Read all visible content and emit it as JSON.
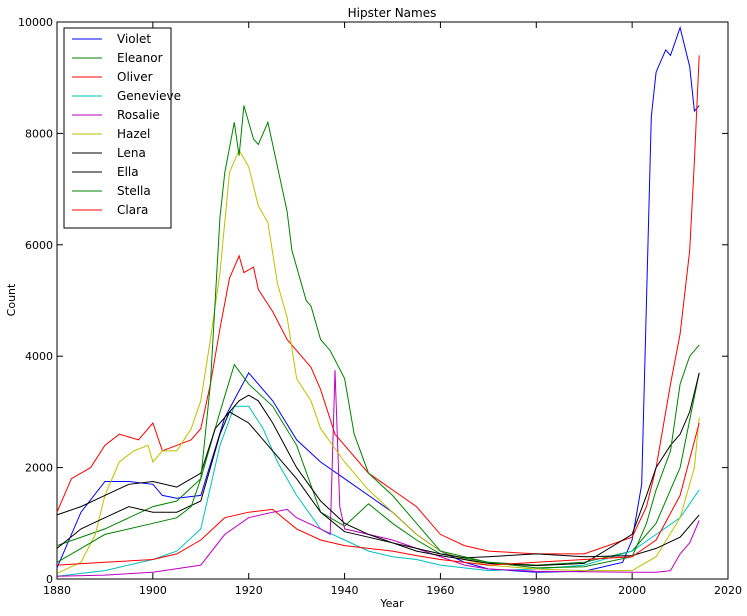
{
  "chart_data": {
    "type": "line",
    "title": "Hipster Names",
    "xlabel": "Year",
    "ylabel": "Count",
    "xlim": [
      1880,
      2020
    ],
    "ylim": [
      0,
      10000
    ],
    "xticks": [
      1880,
      1900,
      1920,
      1940,
      1960,
      1980,
      2000,
      2020
    ],
    "yticks": [
      0,
      2000,
      4000,
      6000,
      8000,
      10000
    ],
    "grid": false,
    "legend_position": "top-left",
    "series": [
      {
        "name": "Violet",
        "color": "#0000ff",
        "points": [
          [
            1880,
            200
          ],
          [
            1885,
            1200
          ],
          [
            1890,
            1750
          ],
          [
            1895,
            1750
          ],
          [
            1900,
            1700
          ],
          [
            1902,
            1500
          ],
          [
            1905,
            1450
          ],
          [
            1910,
            1500
          ],
          [
            1915,
            2900
          ],
          [
            1920,
            3700
          ],
          [
            1925,
            3200
          ],
          [
            1930,
            2500
          ],
          [
            1935,
            2100
          ],
          [
            1940,
            1800
          ],
          [
            1945,
            1500
          ],
          [
            1950,
            1200
          ],
          [
            1955,
            800
          ],
          [
            1960,
            500
          ],
          [
            1965,
            300
          ],
          [
            1970,
            180
          ],
          [
            1980,
            120
          ],
          [
            1990,
            140
          ],
          [
            1998,
            300
          ],
          [
            2000,
            700
          ],
          [
            2002,
            1700
          ],
          [
            2004,
            8300
          ],
          [
            2005,
            9100
          ],
          [
            2007,
            9500
          ],
          [
            2008,
            9400
          ],
          [
            2010,
            9900
          ],
          [
            2012,
            9200
          ],
          [
            2013,
            8400
          ],
          [
            2014,
            8500
          ]
        ]
      },
      {
        "name": "Eleanor",
        "color": "#008000",
        "points": [
          [
            1880,
            600
          ],
          [
            1890,
            900
          ],
          [
            1900,
            1300
          ],
          [
            1905,
            1400
          ],
          [
            1910,
            1800
          ],
          [
            1914,
            3000
          ],
          [
            1917,
            3850
          ],
          [
            1920,
            3500
          ],
          [
            1925,
            3100
          ],
          [
            1930,
            2400
          ],
          [
            1935,
            1200
          ],
          [
            1940,
            950
          ],
          [
            1945,
            1350
          ],
          [
            1950,
            1000
          ],
          [
            1955,
            700
          ],
          [
            1960,
            450
          ],
          [
            1970,
            300
          ],
          [
            1980,
            250
          ],
          [
            1990,
            300
          ],
          [
            2000,
            500
          ],
          [
            2005,
            1000
          ],
          [
            2010,
            2000
          ],
          [
            2014,
            3700
          ]
        ]
      },
      {
        "name": "Oliver",
        "color": "#ff0000",
        "points": [
          [
            1880,
            1200
          ],
          [
            1883,
            1800
          ],
          [
            1887,
            2000
          ],
          [
            1890,
            2400
          ],
          [
            1893,
            2600
          ],
          [
            1897,
            2500
          ],
          [
            1900,
            2800
          ],
          [
            1902,
            2300
          ],
          [
            1905,
            2400
          ],
          [
            1908,
            2500
          ],
          [
            1910,
            2700
          ],
          [
            1912,
            3500
          ],
          [
            1914,
            4500
          ],
          [
            1916,
            5400
          ],
          [
            1918,
            5800
          ],
          [
            1919,
            5500
          ],
          [
            1921,
            5600
          ],
          [
            1922,
            5200
          ],
          [
            1925,
            4800
          ],
          [
            1928,
            4300
          ],
          [
            1930,
            4100
          ],
          [
            1933,
            3800
          ],
          [
            1935,
            3400
          ],
          [
            1938,
            2600
          ],
          [
            1940,
            2400
          ],
          [
            1945,
            1900
          ],
          [
            1950,
            1600
          ],
          [
            1955,
            1300
          ],
          [
            1960,
            800
          ],
          [
            1965,
            600
          ],
          [
            1970,
            500
          ],
          [
            1980,
            450
          ],
          [
            1990,
            450
          ],
          [
            2000,
            750
          ],
          [
            2003,
            1300
          ],
          [
            2005,
            2000
          ],
          [
            2008,
            3500
          ],
          [
            2010,
            4400
          ],
          [
            2012,
            5900
          ],
          [
            2013,
            7500
          ],
          [
            2014,
            9400
          ]
        ]
      },
      {
        "name": "Genevieve",
        "color": "#00bfbf",
        "points": [
          [
            1880,
            50
          ],
          [
            1890,
            150
          ],
          [
            1900,
            350
          ],
          [
            1905,
            500
          ],
          [
            1910,
            900
          ],
          [
            1914,
            2400
          ],
          [
            1917,
            3100
          ],
          [
            1920,
            3100
          ],
          [
            1923,
            2700
          ],
          [
            1926,
            2100
          ],
          [
            1930,
            1500
          ],
          [
            1935,
            900
          ],
          [
            1940,
            700
          ],
          [
            1945,
            500
          ],
          [
            1950,
            400
          ],
          [
            1955,
            350
          ],
          [
            1960,
            250
          ],
          [
            1970,
            150
          ],
          [
            1980,
            180
          ],
          [
            1990,
            250
          ],
          [
            2000,
            500
          ],
          [
            2005,
            800
          ],
          [
            2010,
            1100
          ],
          [
            2014,
            1600
          ]
        ]
      },
      {
        "name": "Rosalie",
        "color": "#bf00bf",
        "points": [
          [
            1880,
            50
          ],
          [
            1890,
            70
          ],
          [
            1900,
            120
          ],
          [
            1910,
            250
          ],
          [
            1915,
            800
          ],
          [
            1920,
            1100
          ],
          [
            1925,
            1200
          ],
          [
            1928,
            1250
          ],
          [
            1930,
            1100
          ],
          [
            1935,
            900
          ],
          [
            1937,
            800
          ],
          [
            1938,
            3750
          ],
          [
            1939,
            1300
          ],
          [
            1940,
            900
          ],
          [
            1945,
            800
          ],
          [
            1950,
            700
          ],
          [
            1955,
            550
          ],
          [
            1960,
            400
          ],
          [
            1965,
            250
          ],
          [
            1970,
            180
          ],
          [
            1980,
            140
          ],
          [
            1990,
            130
          ],
          [
            2000,
            120
          ],
          [
            2005,
            120
          ],
          [
            2008,
            150
          ],
          [
            2010,
            450
          ],
          [
            2012,
            650
          ],
          [
            2014,
            1050
          ]
        ]
      },
      {
        "name": "Hazel",
        "color": "#bfbf00",
        "points": [
          [
            1880,
            100
          ],
          [
            1885,
            300
          ],
          [
            1888,
            800
          ],
          [
            1890,
            1500
          ],
          [
            1893,
            2100
          ],
          [
            1896,
            2300
          ],
          [
            1899,
            2400
          ],
          [
            1900,
            2100
          ],
          [
            1902,
            2300
          ],
          [
            1905,
            2300
          ],
          [
            1908,
            2700
          ],
          [
            1910,
            3200
          ],
          [
            1912,
            4300
          ],
          [
            1914,
            5500
          ],
          [
            1916,
            7300
          ],
          [
            1918,
            7700
          ],
          [
            1920,
            7400
          ],
          [
            1922,
            6700
          ],
          [
            1924,
            6400
          ],
          [
            1926,
            5300
          ],
          [
            1928,
            4700
          ],
          [
            1930,
            3600
          ],
          [
            1933,
            3200
          ],
          [
            1935,
            2700
          ],
          [
            1940,
            2100
          ],
          [
            1945,
            1600
          ],
          [
            1950,
            1200
          ],
          [
            1955,
            800
          ],
          [
            1960,
            500
          ],
          [
            1965,
            350
          ],
          [
            1970,
            250
          ],
          [
            1980,
            180
          ],
          [
            1990,
            150
          ],
          [
            2000,
            150
          ],
          [
            2005,
            400
          ],
          [
            2010,
            1100
          ],
          [
            2013,
            2000
          ],
          [
            2014,
            2900
          ]
        ]
      },
      {
        "name": "Lena",
        "color": "#000000",
        "points": [
          [
            1880,
            550
          ],
          [
            1885,
            900
          ],
          [
            1890,
            1100
          ],
          [
            1895,
            1300
          ],
          [
            1900,
            1200
          ],
          [
            1905,
            1200
          ],
          [
            1910,
            1400
          ],
          [
            1914,
            2600
          ],
          [
            1916,
            3000
          ],
          [
            1920,
            2800
          ],
          [
            1925,
            2300
          ],
          [
            1930,
            1800
          ],
          [
            1935,
            1200
          ],
          [
            1940,
            850
          ],
          [
            1945,
            750
          ],
          [
            1950,
            650
          ],
          [
            1955,
            550
          ],
          [
            1960,
            450
          ],
          [
            1965,
            380
          ],
          [
            1970,
            400
          ],
          [
            1980,
            450
          ],
          [
            1990,
            400
          ],
          [
            2000,
            420
          ],
          [
            2005,
            550
          ],
          [
            2010,
            750
          ],
          [
            2014,
            1150
          ]
        ]
      },
      {
        "name": "Ella",
        "color": "#000000",
        "points": [
          [
            1880,
            1150
          ],
          [
            1885,
            1300
          ],
          [
            1890,
            1500
          ],
          [
            1895,
            1700
          ],
          [
            1900,
            1750
          ],
          [
            1905,
            1650
          ],
          [
            1910,
            1900
          ],
          [
            1913,
            2700
          ],
          [
            1915,
            2900
          ],
          [
            1918,
            3200
          ],
          [
            1920,
            3300
          ],
          [
            1922,
            3200
          ],
          [
            1925,
            2800
          ],
          [
            1930,
            2000
          ],
          [
            1935,
            1400
          ],
          [
            1940,
            1000
          ],
          [
            1945,
            800
          ],
          [
            1950,
            650
          ],
          [
            1955,
            500
          ],
          [
            1960,
            420
          ],
          [
            1970,
            280
          ],
          [
            1980,
            240
          ],
          [
            1990,
            280
          ],
          [
            2000,
            800
          ],
          [
            2003,
            1500
          ],
          [
            2005,
            2000
          ],
          [
            2008,
            2400
          ],
          [
            2010,
            2600
          ],
          [
            2012,
            3000
          ],
          [
            2014,
            3700
          ]
        ]
      },
      {
        "name": "Stella",
        "color": "#008000",
        "points": [
          [
            1880,
            300
          ],
          [
            1885,
            550
          ],
          [
            1890,
            800
          ],
          [
            1895,
            900
          ],
          [
            1900,
            1000
          ],
          [
            1905,
            1100
          ],
          [
            1908,
            1300
          ],
          [
            1910,
            1800
          ],
          [
            1912,
            3500
          ],
          [
            1914,
            6500
          ],
          [
            1915,
            7300
          ],
          [
            1917,
            8200
          ],
          [
            1918,
            7600
          ],
          [
            1919,
            8500
          ],
          [
            1921,
            7900
          ],
          [
            1922,
            7800
          ],
          [
            1924,
            8200
          ],
          [
            1926,
            7400
          ],
          [
            1928,
            6600
          ],
          [
            1929,
            5900
          ],
          [
            1932,
            5000
          ],
          [
            1933,
            4900
          ],
          [
            1935,
            4300
          ],
          [
            1937,
            4100
          ],
          [
            1940,
            3600
          ],
          [
            1942,
            2600
          ],
          [
            1945,
            1900
          ],
          [
            1950,
            1500
          ],
          [
            1955,
            1000
          ],
          [
            1960,
            500
          ],
          [
            1965,
            400
          ],
          [
            1970,
            300
          ],
          [
            1980,
            200
          ],
          [
            1990,
            220
          ],
          [
            2000,
            400
          ],
          [
            2003,
            1000
          ],
          [
            2005,
            1600
          ],
          [
            2008,
            2300
          ],
          [
            2010,
            3500
          ],
          [
            2012,
            4000
          ],
          [
            2014,
            4200
          ]
        ]
      },
      {
        "name": "Clara",
        "color": "#ff0000",
        "points": [
          [
            1880,
            250
          ],
          [
            1890,
            300
          ],
          [
            1900,
            350
          ],
          [
            1905,
            450
          ],
          [
            1910,
            700
          ],
          [
            1915,
            1100
          ],
          [
            1920,
            1200
          ],
          [
            1925,
            1250
          ],
          [
            1930,
            900
          ],
          [
            1935,
            700
          ],
          [
            1940,
            600
          ],
          [
            1945,
            550
          ],
          [
            1950,
            500
          ],
          [
            1955,
            420
          ],
          [
            1960,
            350
          ],
          [
            1970,
            250
          ],
          [
            1980,
            300
          ],
          [
            1990,
            350
          ],
          [
            2000,
            400
          ],
          [
            2005,
            700
          ],
          [
            2010,
            1500
          ],
          [
            2014,
            2800
          ]
        ]
      }
    ]
  }
}
